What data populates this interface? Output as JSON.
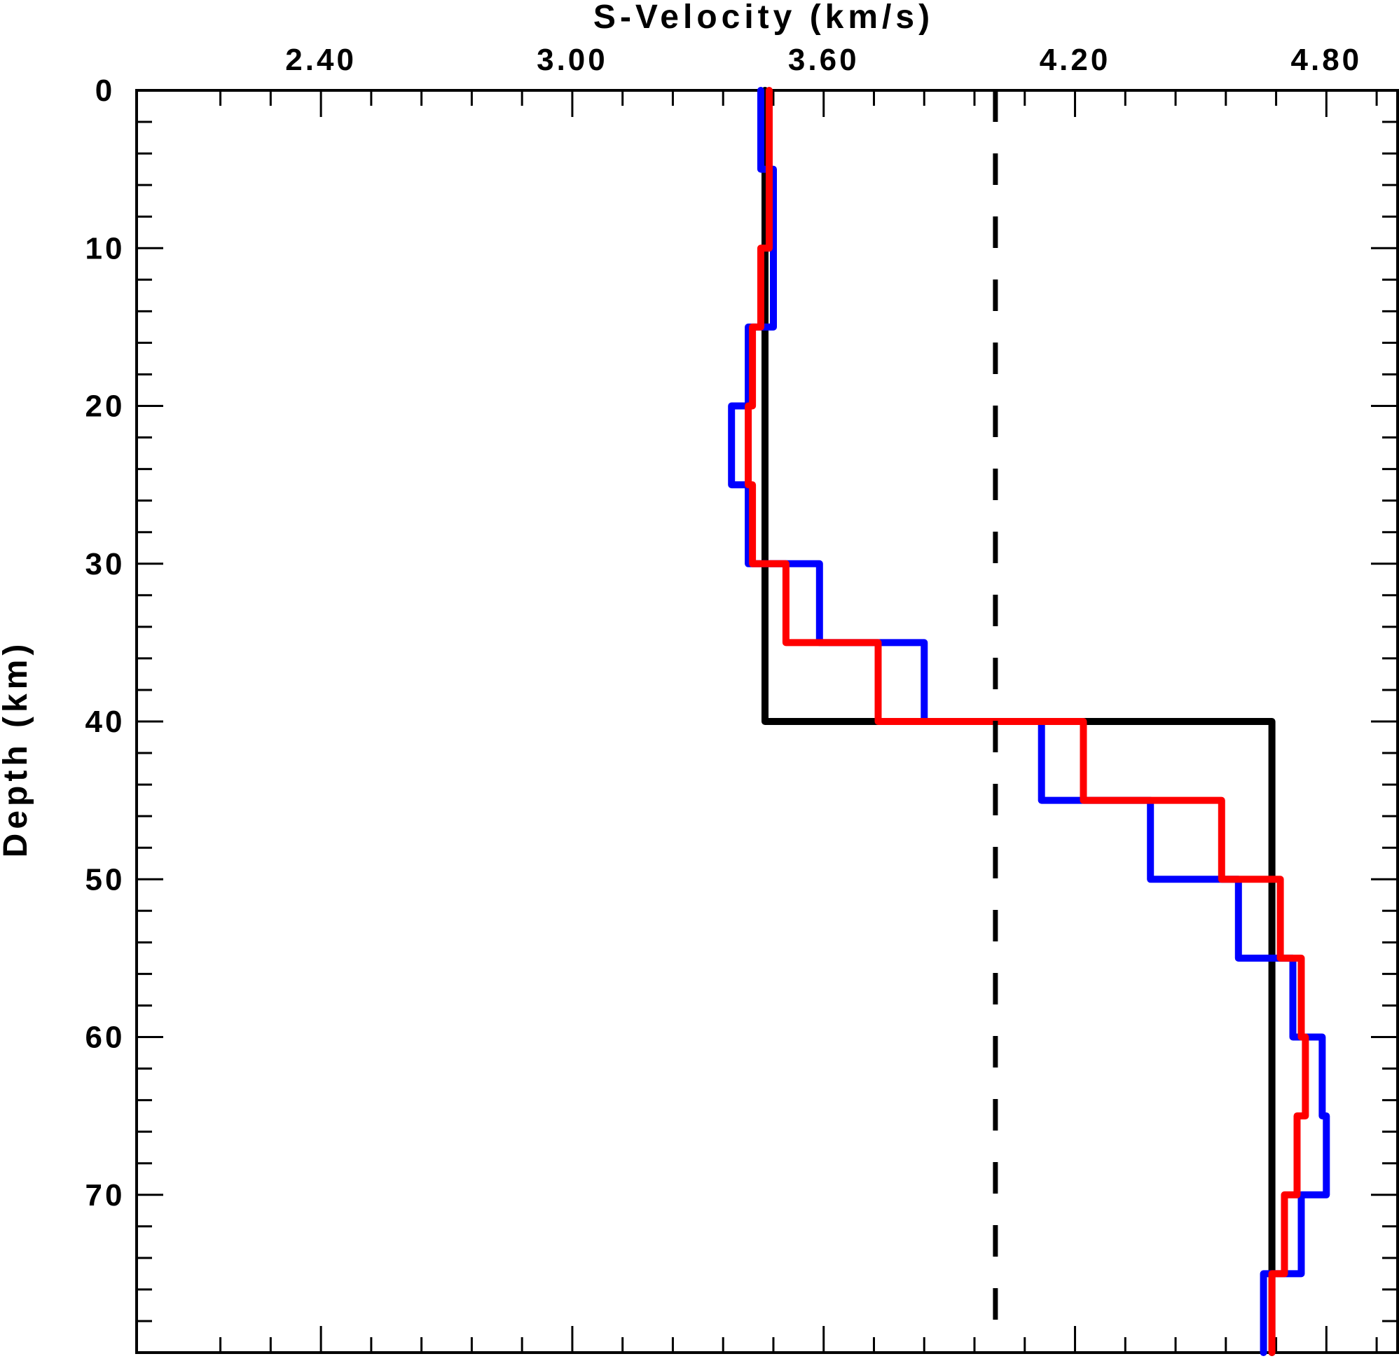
{
  "chart_data": {
    "type": "line",
    "step": true,
    "title": "",
    "xlabel": "S-Velocity (km/s)",
    "ylabel": "Depth (km)",
    "x_axis_position": "top",
    "y_axis_inverted": true,
    "xlim": [
      1.96,
      4.97
    ],
    "ylim": [
      0,
      80
    ],
    "x_ticks": [
      "2.40",
      "3.00",
      "3.60",
      "4.20",
      "4.80"
    ],
    "y_ticks": [
      "0",
      "10",
      "20",
      "30",
      "40",
      "50",
      "60",
      "70"
    ],
    "grid": false,
    "series": [
      {
        "color": "#000000",
        "style": "solid",
        "depth_top": [
          0,
          40
        ],
        "velocity": [
          3.46,
          4.67
        ]
      },
      {
        "color": "#0000ff",
        "style": "solid",
        "depth_top": [
          0,
          5,
          10,
          15,
          20,
          25,
          30,
          35,
          40,
          45,
          50,
          55,
          60,
          65,
          70,
          75
        ],
        "velocity": [
          3.45,
          3.48,
          3.48,
          3.42,
          3.38,
          3.42,
          3.59,
          3.84,
          4.12,
          4.38,
          4.59,
          4.72,
          4.79,
          4.8,
          4.74,
          4.65
        ]
      },
      {
        "color": "#ff0000",
        "style": "solid",
        "depth_top": [
          0,
          5,
          10,
          15,
          20,
          25,
          30,
          35,
          40,
          45,
          50,
          55,
          60,
          65,
          70,
          75
        ],
        "velocity": [
          3.47,
          3.47,
          3.45,
          3.43,
          3.42,
          3.43,
          3.51,
          3.73,
          4.22,
          4.55,
          4.69,
          4.74,
          4.75,
          4.73,
          4.7,
          4.67
        ]
      },
      {
        "color": "#000000",
        "style": "dashed",
        "depth_top": [
          0
        ],
        "velocity": [
          4.01
        ]
      }
    ]
  }
}
